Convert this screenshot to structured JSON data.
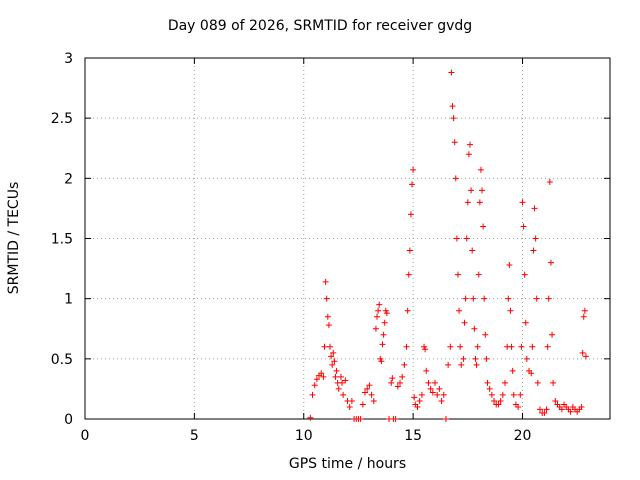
{
  "chart_data": {
    "type": "scatter",
    "title": "Day 089 of 2026, SRMTID for receiver gvdg",
    "xlabel": "GPS time / hours",
    "ylabel": "SRMTID / TECUs",
    "xlim": [
      0,
      24
    ],
    "ylim": [
      0,
      3
    ],
    "xticks": [
      0,
      5,
      10,
      15,
      20
    ],
    "yticks": [
      0,
      0.5,
      1,
      1.5,
      2,
      2.5,
      3
    ],
    "grid": true,
    "marker": "+",
    "color": "#ff0000",
    "series": [
      {
        "name": "SRMTID",
        "points": [
          [
            10.3,
            0.01
          ],
          [
            10.4,
            0.2
          ],
          [
            10.5,
            0.28
          ],
          [
            10.6,
            0.33
          ],
          [
            10.7,
            0.36
          ],
          [
            10.8,
            0.38
          ],
          [
            10.9,
            0.35
          ],
          [
            10.95,
            0.6
          ],
          [
            11.0,
            1.14
          ],
          [
            11.05,
            1.0
          ],
          [
            11.1,
            0.85
          ],
          [
            11.15,
            0.78
          ],
          [
            11.2,
            0.6
          ],
          [
            11.25,
            0.52
          ],
          [
            11.3,
            0.45
          ],
          [
            11.35,
            0.55
          ],
          [
            11.4,
            0.48
          ],
          [
            11.45,
            0.35
          ],
          [
            11.5,
            0.4
          ],
          [
            11.55,
            0.3
          ],
          [
            11.6,
            0.25
          ],
          [
            11.7,
            0.35
          ],
          [
            11.75,
            0.3
          ],
          [
            11.8,
            0.2
          ],
          [
            11.9,
            0.32
          ],
          [
            12.0,
            0.15
          ],
          [
            12.1,
            0.1
          ],
          [
            12.2,
            0.15
          ],
          [
            12.3,
            0.0
          ],
          [
            12.4,
            0.0
          ],
          [
            12.5,
            0.0
          ],
          [
            12.6,
            0.0
          ],
          [
            12.7,
            0.12
          ],
          [
            12.8,
            0.22
          ],
          [
            12.9,
            0.25
          ],
          [
            13.0,
            0.28
          ],
          [
            13.1,
            0.2
          ],
          [
            13.2,
            0.15
          ],
          [
            13.3,
            0.75
          ],
          [
            13.35,
            0.85
          ],
          [
            13.4,
            0.9
          ],
          [
            13.45,
            0.95
          ],
          [
            13.5,
            0.5
          ],
          [
            13.55,
            0.48
          ],
          [
            13.6,
            0.62
          ],
          [
            13.65,
            0.7
          ],
          [
            13.7,
            0.8
          ],
          [
            13.75,
            0.9
          ],
          [
            13.8,
            0.88
          ],
          [
            13.9,
            0.0
          ],
          [
            14.0,
            0.3
          ],
          [
            14.05,
            0.34
          ],
          [
            14.1,
            0.0
          ],
          [
            14.2,
            0.0
          ],
          [
            14.3,
            0.27
          ],
          [
            14.4,
            0.3
          ],
          [
            14.5,
            0.35
          ],
          [
            14.6,
            0.45
          ],
          [
            14.7,
            0.6
          ],
          [
            14.75,
            0.9
          ],
          [
            14.8,
            1.2
          ],
          [
            14.85,
            1.4
          ],
          [
            14.9,
            1.7
          ],
          [
            14.95,
            1.95
          ],
          [
            15.0,
            2.07
          ],
          [
            15.05,
            0.18
          ],
          [
            15.1,
            0.12
          ],
          [
            15.2,
            0.1
          ],
          [
            15.3,
            0.15
          ],
          [
            15.4,
            0.2
          ],
          [
            15.5,
            0.6
          ],
          [
            15.55,
            0.58
          ],
          [
            15.6,
            0.4
          ],
          [
            15.7,
            0.3
          ],
          [
            15.8,
            0.25
          ],
          [
            15.9,
            0.22
          ],
          [
            16.0,
            0.3
          ],
          [
            16.1,
            0.2
          ],
          [
            16.2,
            0.25
          ],
          [
            16.3,
            0.15
          ],
          [
            16.4,
            0.2
          ],
          [
            16.5,
            0.0
          ],
          [
            16.6,
            0.45
          ],
          [
            16.7,
            0.6
          ],
          [
            16.75,
            2.88
          ],
          [
            16.8,
            2.6
          ],
          [
            16.85,
            2.5
          ],
          [
            16.9,
            2.3
          ],
          [
            16.95,
            2.0
          ],
          [
            17.0,
            1.5
          ],
          [
            17.05,
            1.2
          ],
          [
            17.1,
            0.9
          ],
          [
            17.15,
            0.6
          ],
          [
            17.2,
            0.45
          ],
          [
            17.3,
            0.5
          ],
          [
            17.35,
            0.8
          ],
          [
            17.4,
            1.0
          ],
          [
            17.45,
            1.5
          ],
          [
            17.5,
            1.8
          ],
          [
            17.55,
            2.2
          ],
          [
            17.6,
            2.28
          ],
          [
            17.65,
            1.9
          ],
          [
            17.7,
            1.4
          ],
          [
            17.75,
            1.0
          ],
          [
            17.8,
            0.75
          ],
          [
            17.85,
            0.5
          ],
          [
            17.9,
            0.45
          ],
          [
            17.95,
            0.6
          ],
          [
            18.0,
            1.2
          ],
          [
            18.05,
            1.8
          ],
          [
            18.1,
            2.07
          ],
          [
            18.15,
            1.9
          ],
          [
            18.2,
            1.6
          ],
          [
            18.25,
            1.0
          ],
          [
            18.3,
            0.7
          ],
          [
            18.35,
            0.5
          ],
          [
            18.4,
            0.3
          ],
          [
            18.5,
            0.25
          ],
          [
            18.6,
            0.2
          ],
          [
            18.7,
            0.15
          ],
          [
            18.8,
            0.12
          ],
          [
            18.9,
            0.12
          ],
          [
            19.0,
            0.15
          ],
          [
            19.1,
            0.2
          ],
          [
            19.2,
            0.3
          ],
          [
            19.3,
            0.6
          ],
          [
            19.35,
            1.0
          ],
          [
            19.4,
            1.28
          ],
          [
            19.45,
            0.9
          ],
          [
            19.5,
            0.6
          ],
          [
            19.55,
            0.4
          ],
          [
            19.6,
            0.2
          ],
          [
            19.7,
            0.12
          ],
          [
            19.8,
            0.1
          ],
          [
            19.9,
            0.2
          ],
          [
            19.95,
            0.6
          ],
          [
            20.0,
            1.8
          ],
          [
            20.05,
            1.6
          ],
          [
            20.1,
            1.2
          ],
          [
            20.15,
            0.8
          ],
          [
            20.2,
            0.5
          ],
          [
            20.3,
            0.4
          ],
          [
            20.4,
            0.38
          ],
          [
            20.45,
            0.6
          ],
          [
            20.5,
            1.4
          ],
          [
            20.55,
            1.75
          ],
          [
            20.6,
            1.5
          ],
          [
            20.65,
            1.0
          ],
          [
            20.7,
            0.3
          ],
          [
            20.8,
            0.08
          ],
          [
            20.9,
            0.05
          ],
          [
            21.0,
            0.05
          ],
          [
            21.1,
            0.08
          ],
          [
            21.15,
            0.6
          ],
          [
            21.2,
            1.0
          ],
          [
            21.25,
            1.97
          ],
          [
            21.3,
            1.3
          ],
          [
            21.35,
            0.7
          ],
          [
            21.4,
            0.3
          ],
          [
            21.5,
            0.15
          ],
          [
            21.6,
            0.12
          ],
          [
            21.7,
            0.1
          ],
          [
            21.8,
            0.08
          ],
          [
            21.9,
            0.12
          ],
          [
            22.0,
            0.1
          ],
          [
            22.1,
            0.08
          ],
          [
            22.2,
            0.06
          ],
          [
            22.3,
            0.1
          ],
          [
            22.4,
            0.08
          ],
          [
            22.5,
            0.06
          ],
          [
            22.6,
            0.08
          ],
          [
            22.7,
            0.1
          ],
          [
            22.75,
            0.55
          ],
          [
            22.8,
            0.85
          ],
          [
            22.85,
            0.9
          ],
          [
            22.9,
            0.52
          ]
        ]
      }
    ]
  }
}
